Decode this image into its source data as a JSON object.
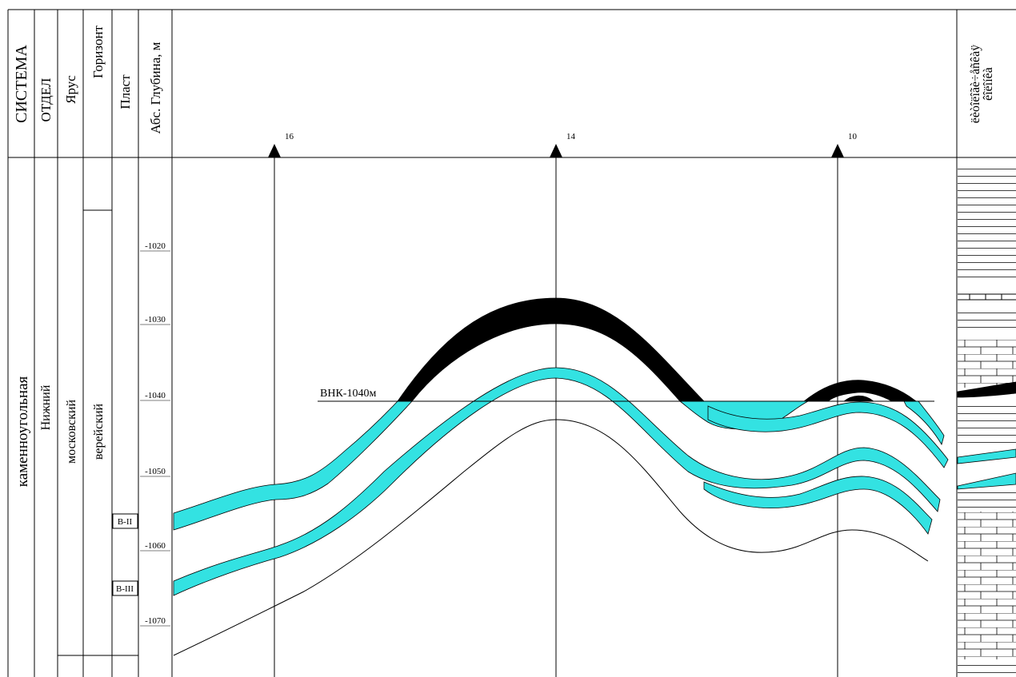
{
  "header": {
    "columns": [
      "СИСТЕМА",
      "ОТДЕЛ",
      "Ярус",
      "Горизонт",
      "Пласт",
      "Абс. Глубина, м"
    ],
    "lithology": [
      "ëèòîëîãè÷åñêàÿ",
      "êîëîíêà"
    ]
  },
  "columns": {
    "system": "каменноугольная",
    "division": "Нижний",
    "stage": "московский",
    "horizon": "верейский",
    "layers": [
      "В-II",
      "В-III"
    ]
  },
  "depth_labels": [
    "-1020",
    "-1030",
    "-1040",
    "-1050",
    "-1060",
    "-1070"
  ],
  "wells": [
    "16",
    "14",
    "10"
  ],
  "contact_label": "ВНК-1040м"
}
